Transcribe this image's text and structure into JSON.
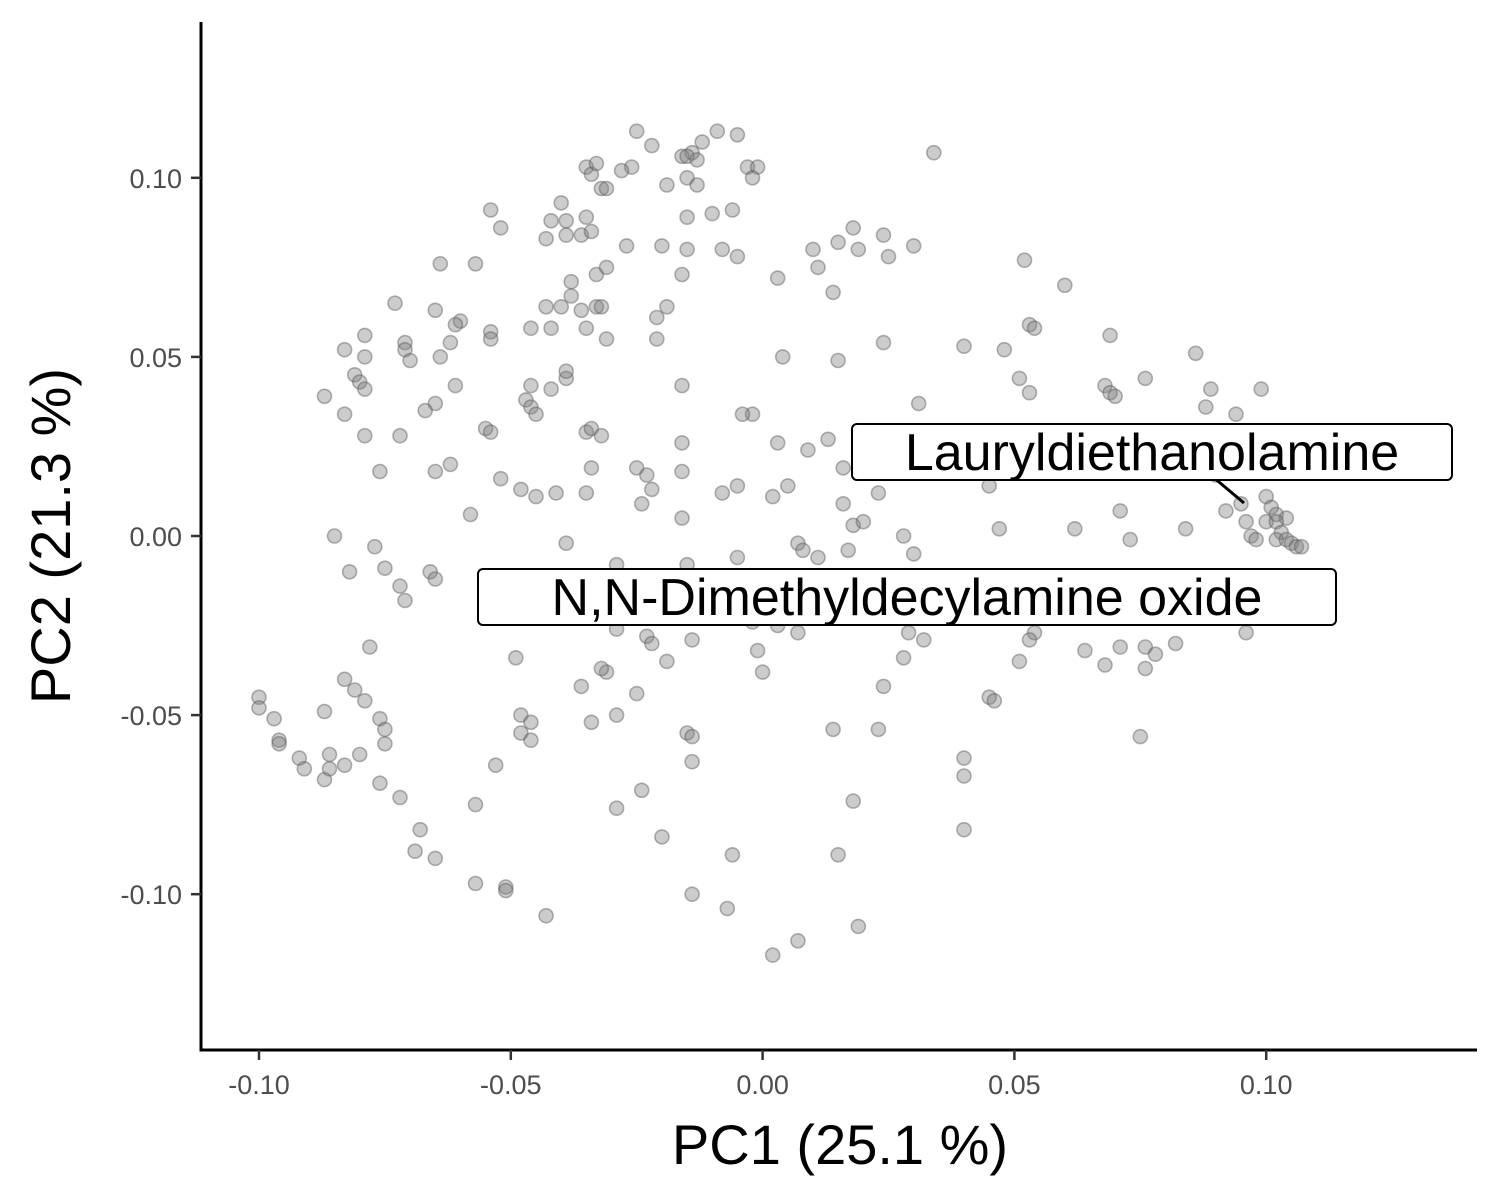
{
  "colors": {
    "point_fill": "#7f7f7f",
    "point_stroke": "#595959",
    "axis": "#000000",
    "tick_text": "#4d4d4d"
  },
  "chart_data": {
    "type": "scatter",
    "xlabel": "PC1 (25.1 %)",
    "ylabel": "PC2 (21.3 %)",
    "xlim": [
      -0.111,
      0.14
    ],
    "ylim": [
      -0.143,
      0.143
    ],
    "xticks": [
      -0.1,
      -0.05,
      0.0,
      0.05,
      0.1
    ],
    "yticks": [
      -0.1,
      -0.05,
      0.0,
      0.05,
      0.1
    ],
    "xtick_labels": [
      "-0.10",
      "-0.05",
      "0.00",
      "0.05",
      "0.10"
    ],
    "ytick_labels": [
      "-0.10",
      "-0.05",
      "0.00",
      "0.05",
      "0.10"
    ],
    "grid": false,
    "legend": "none",
    "annotations": [
      {
        "text": "Lauryldiethanolamine",
        "x": 0.0953,
        "y": 0.0093
      },
      {
        "text": "N,N-Dimethyldecylamine oxide",
        "x": 0.048,
        "y": -0.018
      }
    ],
    "points": [
      [
        -0.025,
        0.113
      ],
      [
        -0.022,
        0.109
      ],
      [
        -0.014,
        0.107
      ],
      [
        -0.012,
        0.11
      ],
      [
        -0.009,
        0.113
      ],
      [
        -0.005,
        0.112
      ],
      [
        -0.016,
        0.106
      ],
      [
        -0.015,
        0.106
      ],
      [
        -0.013,
        0.105
      ],
      [
        -0.026,
        0.103
      ],
      [
        -0.028,
        0.102
      ],
      [
        -0.035,
        0.103
      ],
      [
        -0.034,
        0.101
      ],
      [
        -0.033,
        0.104
      ],
      [
        -0.032,
        0.097
      ],
      [
        -0.031,
        0.097
      ],
      [
        -0.019,
        0.098
      ],
      [
        -0.015,
        0.1
      ],
      [
        -0.013,
        0.098
      ],
      [
        -0.003,
        0.103
      ],
      [
        -0.001,
        0.103
      ],
      [
        -0.002,
        0.1
      ],
      [
        0.034,
        0.107
      ],
      [
        -0.054,
        0.091
      ],
      [
        -0.052,
        0.086
      ],
      [
        -0.04,
        0.093
      ],
      [
        -0.039,
        0.088
      ],
      [
        -0.042,
        0.088
      ],
      [
        -0.043,
        0.083
      ],
      [
        -0.039,
        0.084
      ],
      [
        -0.036,
        0.084
      ],
      [
        -0.035,
        0.089
      ],
      [
        -0.034,
        0.085
      ],
      [
        -0.01,
        0.09
      ],
      [
        -0.006,
        0.091
      ],
      [
        -0.015,
        0.089
      ],
      [
        -0.027,
        0.081
      ],
      [
        -0.02,
        0.081
      ],
      [
        -0.015,
        0.08
      ],
      [
        -0.008,
        0.08
      ],
      [
        -0.005,
        0.078
      ],
      [
        0.01,
        0.08
      ],
      [
        0.018,
        0.086
      ],
      [
        0.015,
        0.082
      ],
      [
        0.019,
        0.08
      ],
      [
        0.024,
        0.084
      ],
      [
        0.025,
        0.078
      ],
      [
        0.03,
        0.081
      ],
      [
        0.011,
        0.075
      ],
      [
        0.003,
        0.072
      ],
      [
        -0.016,
        0.073
      ],
      [
        -0.064,
        0.076
      ],
      [
        -0.057,
        0.076
      ],
      [
        -0.038,
        0.071
      ],
      [
        -0.033,
        0.073
      ],
      [
        -0.031,
        0.075
      ],
      [
        0.014,
        0.068
      ],
      [
        0.052,
        0.077
      ],
      [
        0.06,
        0.07
      ],
      [
        -0.073,
        0.065
      ],
      [
        -0.065,
        0.063
      ],
      [
        -0.06,
        0.06
      ],
      [
        -0.061,
        0.059
      ],
      [
        -0.071,
        0.054
      ],
      [
        -0.071,
        0.052
      ],
      [
        -0.07,
        0.049
      ],
      [
        -0.064,
        0.05
      ],
      [
        -0.062,
        0.054
      ],
      [
        -0.054,
        0.057
      ],
      [
        -0.054,
        0.055
      ],
      [
        -0.046,
        0.058
      ],
      [
        -0.043,
        0.064
      ],
      [
        -0.04,
        0.064
      ],
      [
        -0.038,
        0.067
      ],
      [
        -0.036,
        0.063
      ],
      [
        -0.033,
        0.064
      ],
      [
        -0.032,
        0.064
      ],
      [
        -0.035,
        0.058
      ],
      [
        -0.031,
        0.055
      ],
      [
        -0.042,
        0.058
      ],
      [
        -0.021,
        0.061
      ],
      [
        -0.019,
        0.064
      ],
      [
        -0.021,
        0.055
      ],
      [
        -0.079,
        0.056
      ],
      [
        -0.079,
        0.05
      ],
      [
        -0.083,
        0.052
      ],
      [
        -0.081,
        0.045
      ],
      [
        -0.08,
        0.043
      ],
      [
        -0.079,
        0.041
      ],
      [
        -0.087,
        0.039
      ],
      [
        -0.083,
        0.034
      ],
      [
        -0.079,
        0.028
      ],
      [
        -0.061,
        0.042
      ],
      [
        -0.065,
        0.037
      ],
      [
        -0.067,
        0.035
      ],
      [
        -0.072,
        0.028
      ],
      [
        -0.046,
        0.042
      ],
      [
        -0.047,
        0.038
      ],
      [
        -0.046,
        0.036
      ],
      [
        -0.042,
        0.041
      ],
      [
        -0.039,
        0.044
      ],
      [
        -0.039,
        0.046
      ],
      [
        -0.045,
        0.034
      ],
      [
        0.004,
        0.05
      ],
      [
        0.015,
        0.049
      ],
      [
        0.024,
        0.054
      ],
      [
        0.031,
        0.037
      ],
      [
        0.04,
        0.053
      ],
      [
        0.048,
        0.052
      ],
      [
        0.053,
        0.059
      ],
      [
        0.054,
        0.058
      ],
      [
        0.051,
        0.044
      ],
      [
        0.053,
        0.04
      ],
      [
        0.069,
        0.056
      ],
      [
        0.068,
        0.042
      ],
      [
        0.069,
        0.04
      ],
      [
        0.07,
        0.039
      ],
      [
        0.076,
        0.044
      ],
      [
        0.086,
        0.051
      ],
      [
        0.089,
        0.041
      ],
      [
        0.088,
        0.036
      ],
      [
        0.099,
        0.041
      ],
      [
        0.094,
        0.034
      ],
      [
        -0.016,
        0.042
      ],
      [
        -0.002,
        0.034
      ],
      [
        -0.004,
        0.034
      ],
      [
        -0.055,
        0.03
      ],
      [
        -0.054,
        0.029
      ],
      [
        -0.035,
        0.029
      ],
      [
        -0.034,
        0.03
      ],
      [
        -0.032,
        0.028
      ],
      [
        -0.034,
        0.019
      ],
      [
        -0.076,
        0.018
      ],
      [
        -0.065,
        0.018
      ],
      [
        -0.062,
        0.02
      ],
      [
        -0.052,
        0.016
      ],
      [
        -0.048,
        0.013
      ],
      [
        -0.045,
        0.011
      ],
      [
        -0.041,
        0.012
      ],
      [
        -0.035,
        0.012
      ],
      [
        -0.025,
        0.019
      ],
      [
        -0.023,
        0.017
      ],
      [
        -0.024,
        0.009
      ],
      [
        -0.016,
        0.026
      ],
      [
        -0.016,
        0.018
      ],
      [
        -0.022,
        0.013
      ],
      [
        -0.016,
        0.005
      ],
      [
        -0.008,
        0.012
      ],
      [
        -0.005,
        0.014
      ],
      [
        0.003,
        0.026
      ],
      [
        0.002,
        0.011
      ],
      [
        0.005,
        0.014
      ],
      [
        0.009,
        0.024
      ],
      [
        0.013,
        0.027
      ],
      [
        0.016,
        0.019
      ],
      [
        0.016,
        0.009
      ],
      [
        0.018,
        0.003
      ],
      [
        0.02,
        0.004
      ],
      [
        0.023,
        0.012
      ],
      [
        0.028,
        0.0
      ],
      [
        0.045,
        0.014
      ],
      [
        0.047,
        0.002
      ],
      [
        0.062,
        0.002
      ],
      [
        0.071,
        0.007
      ],
      [
        0.073,
        -0.001
      ],
      [
        0.084,
        0.002
      ],
      [
        0.09,
        0.017
      ],
      [
        0.092,
        0.007
      ],
      [
        0.095,
        0.009
      ],
      [
        0.096,
        0.004
      ],
      [
        0.1,
        0.011
      ],
      [
        0.101,
        0.008
      ],
      [
        0.102,
        0.006
      ],
      [
        0.104,
        0.005
      ],
      [
        0.097,
        0.0
      ],
      [
        0.098,
        -0.001
      ],
      [
        0.1,
        0.004
      ],
      [
        0.102,
        0.004
      ],
      [
        0.103,
        0.001
      ],
      [
        0.102,
        -0.001
      ],
      [
        0.104,
        -0.001
      ],
      [
        0.105,
        -0.002
      ],
      [
        0.106,
        -0.003
      ],
      [
        0.107,
        -0.003
      ],
      [
        -0.058,
        0.006
      ],
      [
        -0.085,
        0.0
      ],
      [
        -0.077,
        -0.003
      ],
      [
        -0.082,
        -0.01
      ],
      [
        -0.075,
        -0.009
      ],
      [
        -0.072,
        -0.014
      ],
      [
        -0.071,
        -0.018
      ],
      [
        -0.066,
        -0.01
      ],
      [
        -0.065,
        -0.012
      ],
      [
        -0.039,
        -0.002
      ],
      [
        -0.029,
        -0.008
      ],
      [
        -0.015,
        -0.008
      ],
      [
        -0.005,
        -0.006
      ],
      [
        0.007,
        -0.002
      ],
      [
        0.008,
        -0.004
      ],
      [
        0.011,
        -0.006
      ],
      [
        0.017,
        -0.004
      ],
      [
        0.03,
        -0.005
      ],
      [
        0.007,
        -0.027
      ],
      [
        -0.029,
        -0.026
      ],
      [
        -0.023,
        -0.028
      ],
      [
        -0.022,
        -0.03
      ],
      [
        -0.014,
        -0.029
      ],
      [
        -0.002,
        -0.024
      ],
      [
        0.003,
        -0.025
      ],
      [
        0.029,
        -0.027
      ],
      [
        0.032,
        -0.029
      ],
      [
        0.054,
        -0.027
      ],
      [
        0.053,
        -0.029
      ],
      [
        0.064,
        -0.032
      ],
      [
        0.071,
        -0.031
      ],
      [
        0.076,
        -0.031
      ],
      [
        0.078,
        -0.033
      ],
      [
        0.082,
        -0.03
      ],
      [
        0.096,
        -0.027
      ],
      [
        0.068,
        -0.036
      ],
      [
        0.076,
        -0.037
      ],
      [
        0.051,
        -0.035
      ],
      [
        0.028,
        -0.034
      ],
      [
        -0.019,
        -0.035
      ],
      [
        -0.001,
        -0.032
      ],
      [
        0.0,
        -0.038
      ],
      [
        -0.049,
        -0.034
      ],
      [
        -0.031,
        -0.038
      ],
      [
        -0.036,
        -0.042
      ],
      [
        -0.032,
        -0.037
      ],
      [
        -0.025,
        -0.044
      ],
      [
        0.024,
        -0.042
      ],
      [
        -0.078,
        -0.031
      ],
      [
        -0.1,
        -0.045
      ],
      [
        -0.1,
        -0.048
      ],
      [
        -0.097,
        -0.051
      ],
      [
        -0.096,
        -0.057
      ],
      [
        -0.096,
        -0.058
      ],
      [
        -0.092,
        -0.062
      ],
      [
        -0.091,
        -0.065
      ],
      [
        -0.087,
        -0.068
      ],
      [
        -0.086,
        -0.065
      ],
      [
        -0.086,
        -0.061
      ],
      [
        -0.083,
        -0.064
      ],
      [
        -0.08,
        -0.061
      ],
      [
        -0.083,
        -0.04
      ],
      [
        -0.081,
        -0.043
      ],
      [
        -0.079,
        -0.046
      ],
      [
        -0.076,
        -0.051
      ],
      [
        -0.075,
        -0.054
      ],
      [
        -0.075,
        -0.058
      ],
      [
        -0.076,
        -0.069
      ],
      [
        -0.072,
        -0.073
      ],
      [
        -0.068,
        -0.082
      ],
      [
        -0.069,
        -0.088
      ],
      [
        -0.065,
        -0.09
      ],
      [
        -0.087,
        -0.049
      ],
      [
        -0.057,
        -0.075
      ],
      [
        -0.053,
        -0.064
      ],
      [
        -0.048,
        -0.05
      ],
      [
        -0.048,
        -0.055
      ],
      [
        -0.046,
        -0.052
      ],
      [
        -0.046,
        -0.057
      ],
      [
        -0.034,
        -0.052
      ],
      [
        -0.029,
        -0.05
      ],
      [
        -0.015,
        -0.055
      ],
      [
        -0.014,
        -0.056
      ],
      [
        -0.014,
        -0.063
      ],
      [
        -0.029,
        -0.076
      ],
      [
        -0.024,
        -0.071
      ],
      [
        -0.02,
        -0.084
      ],
      [
        -0.006,
        -0.089
      ],
      [
        0.014,
        -0.054
      ],
      [
        0.018,
        -0.074
      ],
      [
        0.015,
        -0.089
      ],
      [
        0.023,
        -0.054
      ],
      [
        0.04,
        -0.062
      ],
      [
        0.04,
        -0.067
      ],
      [
        0.04,
        -0.082
      ],
      [
        0.045,
        -0.045
      ],
      [
        0.046,
        -0.046
      ],
      [
        0.075,
        -0.056
      ],
      [
        -0.057,
        -0.097
      ],
      [
        -0.051,
        -0.098
      ],
      [
        -0.051,
        -0.099
      ],
      [
        -0.043,
        -0.106
      ],
      [
        -0.014,
        -0.1
      ],
      [
        -0.007,
        -0.104
      ],
      [
        0.002,
        -0.117
      ],
      [
        0.007,
        -0.113
      ],
      [
        0.019,
        -0.109
      ]
    ]
  }
}
